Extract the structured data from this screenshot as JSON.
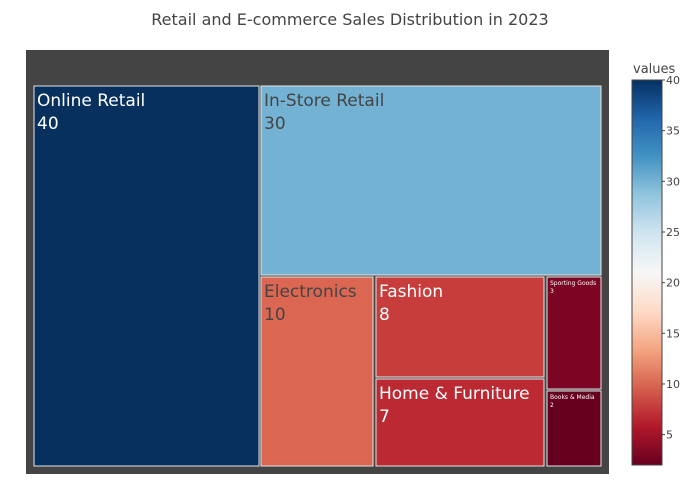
{
  "chart_data": {
    "type": "treemap",
    "title": "Retail and E-commerce Sales Distribution in 2023",
    "items": [
      {
        "label": "Online Retail",
        "value": 40,
        "color": "#08305f",
        "text_color": "#ffffff"
      },
      {
        "label": "In-Store Retail",
        "value": 30,
        "color": "#74b2d4",
        "text_color": "#444444"
      },
      {
        "label": "Electronics",
        "value": 10,
        "color": "#db6753",
        "text_color": "#444444"
      },
      {
        "label": "Fashion",
        "value": 8,
        "color": "#c73d3c",
        "text_color": "#ffffff"
      },
      {
        "label": "Home & Furniture",
        "value": 7,
        "color": "#bb2a33",
        "text_color": "#ffffff"
      },
      {
        "label": "Sporting Goods",
        "value": 3,
        "color": "#7b0522",
        "text_color": "#ffffff"
      },
      {
        "label": "Books & Media",
        "value": 2,
        "color": "#67001f",
        "text_color": "#ffffff"
      }
    ],
    "colorbar": {
      "title": "values",
      "range": [
        2,
        40
      ],
      "ticks": [
        5,
        10,
        15,
        20,
        25,
        30,
        35,
        40
      ],
      "colorscale": [
        "#67001f",
        "#b2182b",
        "#d6604d",
        "#f4a582",
        "#fddbc7",
        "#f7f7f7",
        "#d1e5f0",
        "#92c5de",
        "#4393c3",
        "#2166ac",
        "#053061"
      ]
    }
  }
}
